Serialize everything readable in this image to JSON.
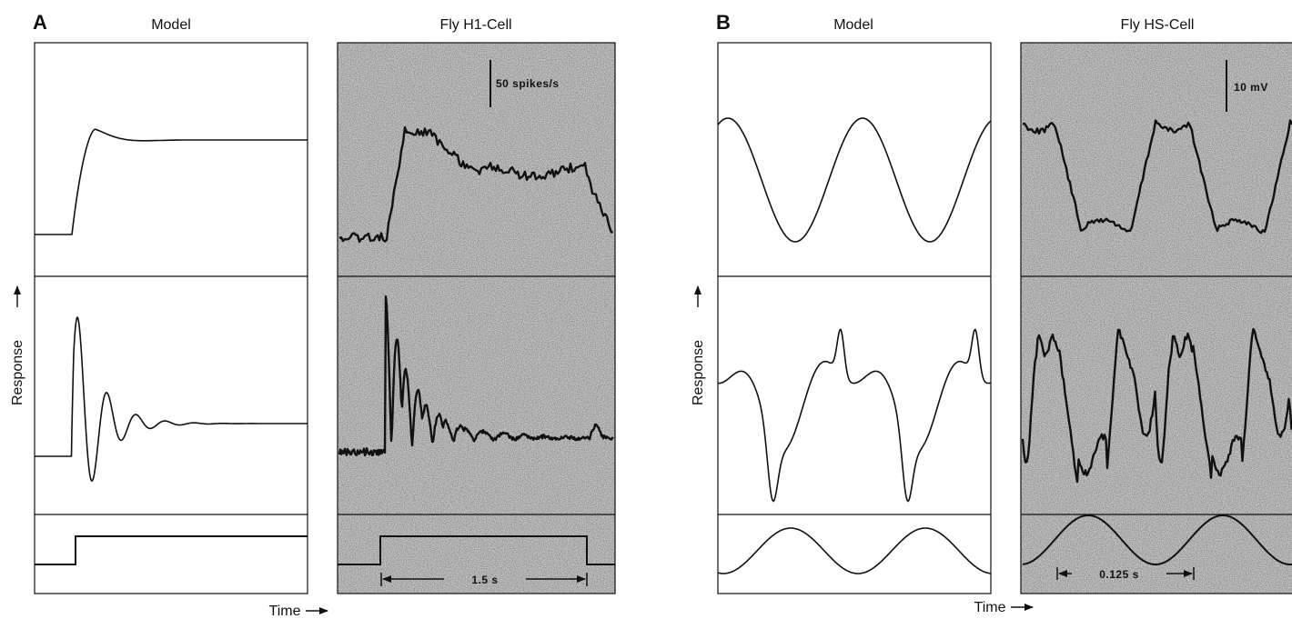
{
  "figure": {
    "panel_a": {
      "letter": "A",
      "left_title": "Model",
      "right_title": "Fly H1-Cell",
      "scale_bar_label": "50 spikes/s",
      "duration_label": "1.5 s",
      "y_axis_label": "Response",
      "x_axis_label": "Time"
    },
    "panel_b": {
      "letter": "B",
      "left_title": "Model",
      "right_title": "Fly HS-Cell",
      "scale_bar_label": "10 mV",
      "duration_label": "0.125 s",
      "y_axis_label": "Response",
      "x_axis_label": "Time"
    },
    "colors": {
      "ink": "#111111",
      "recording_background": "#c9c9c9"
    }
  },
  "chart_data": [
    {
      "type": "line",
      "panel": "A",
      "column": "Model",
      "rows": [
        {
          "row": "response",
          "shape": "step response with damped overshoot"
        },
        {
          "row": "response",
          "shape": "step response with strong damped oscillation"
        },
        {
          "row": "stimulus",
          "shape": "step"
        }
      ]
    },
    {
      "type": "line",
      "panel": "A",
      "column": "Fly H1-Cell",
      "scale_bar": "50 spikes/s",
      "time_marker": "1.5 s",
      "rows": [
        {
          "row": "response",
          "shape": "recorded step response"
        },
        {
          "row": "response",
          "shape": "recorded oscillating step response"
        },
        {
          "row": "stimulus",
          "shape": "pulse"
        }
      ]
    },
    {
      "type": "line",
      "panel": "B",
      "column": "Model",
      "rows": [
        {
          "row": "response",
          "shape": "sinusoid"
        },
        {
          "row": "response",
          "shape": "distorted periodic response"
        },
        {
          "row": "stimulus",
          "shape": "sinusoid"
        }
      ]
    },
    {
      "type": "line",
      "panel": "B",
      "column": "Fly HS-Cell",
      "scale_bar": "10 mV",
      "time_marker": "0.125 s",
      "rows": [
        {
          "row": "response",
          "shape": "recorded square-like periodic response"
        },
        {
          "row": "response",
          "shape": "recorded distorted periodic response"
        },
        {
          "row": "stimulus",
          "shape": "sinusoid"
        }
      ]
    }
  ]
}
